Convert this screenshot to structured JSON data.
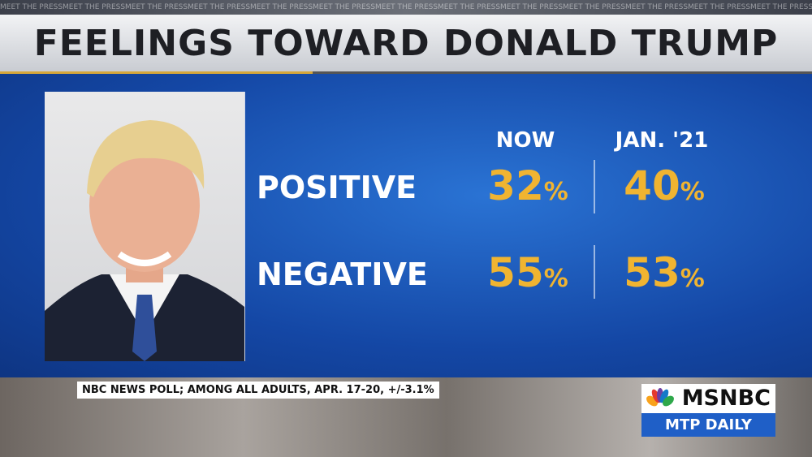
{
  "top_strip": "MEET THE PRESS",
  "header": {
    "title": "FEELINGS TOWARD DONALD TRUMP"
  },
  "table": {
    "columns": [
      "NOW",
      "JAN. '21"
    ],
    "rows": [
      {
        "label": "POSITIVE",
        "cells": [
          {
            "value": 32,
            "unit": "%"
          },
          {
            "value": 40,
            "unit": "%"
          }
        ]
      },
      {
        "label": "NEGATIVE",
        "cells": [
          {
            "value": 55,
            "unit": "%"
          },
          {
            "value": 53,
            "unit": "%"
          }
        ]
      }
    ]
  },
  "footer": {
    "source": "NBC NEWS POLL; AMONG ALL ADULTS, APR. 17-20, +/-3.1%"
  },
  "logo": {
    "network": "MSNBC",
    "show": "MTP DAILY"
  }
}
